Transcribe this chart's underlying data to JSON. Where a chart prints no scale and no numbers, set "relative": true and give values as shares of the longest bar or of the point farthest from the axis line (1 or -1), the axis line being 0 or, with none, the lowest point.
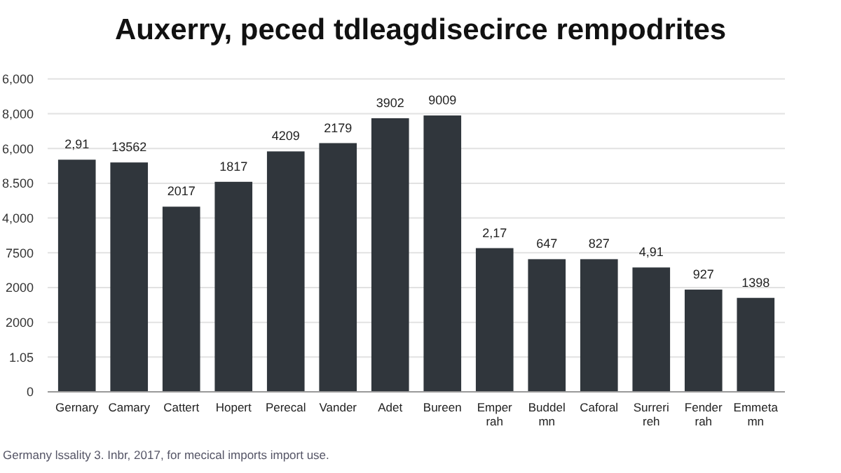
{
  "chart_data": {
    "type": "bar",
    "title": "Auxerry, peced tdleagdisecirce rempodrites",
    "categories": [
      "Gernary",
      "Camary",
      "Cattert",
      "Hopert",
      "Perecal",
      "Vander",
      "Adet",
      "Bureen",
      "Emper rah",
      "Buddel mn",
      "Caforal",
      "Surreri reh",
      "Fender rah",
      "Emmeta mn"
    ],
    "values": [
      0.84,
      0.83,
      0.67,
      0.76,
      0.87,
      0.9,
      0.99,
      1,
      0.52,
      0.48,
      0.48,
      0.45,
      0.37,
      0.34
    ],
    "relative": true,
    "color": "#30363c",
    "grid": "y",
    "annotations": [
      "0",
      "1.05",
      "2000",
      "2000",
      "7500",
      "4,000",
      "8.500",
      "6,000",
      "8,000",
      "6,000",
      {
        "text": "2,91",
        "x": "Gernary",
        "y": 0.84
      },
      {
        "text": "13562",
        "x": "Camary",
        "y": 0.83
      },
      {
        "text": "2017",
        "x": "Cattert",
        "y": 0.67
      },
      {
        "text": "1817",
        "x": "Hopert",
        "y": 0.76
      },
      {
        "text": "4209",
        "x": "Perecal",
        "y": 0.87
      },
      {
        "text": "2179",
        "x": "Vander",
        "y": 0.9
      },
      {
        "text": "3902",
        "x": "Adet",
        "y": 0.99
      },
      {
        "text": "9009",
        "x": "Bureen",
        "y": 1
      },
      {
        "text": "2,17",
        "x": "Emper rah",
        "y": 0.52
      },
      {
        "text": "647",
        "x": "Buddel mn",
        "y": 0.48
      },
      {
        "text": "827",
        "x": "Caforal",
        "y": 0.48
      },
      {
        "text": "4,91",
        "x": "Surreri reh",
        "y": 0.45
      },
      {
        "text": "927",
        "x": "Fender rah",
        "y": 0.37
      },
      {
        "text": "1398",
        "x": "Emmeta mn",
        "y": 0.34
      },
      "Germany lssality 3. Inbr, 2017, for mecical imports import use."
    ]
  }
}
